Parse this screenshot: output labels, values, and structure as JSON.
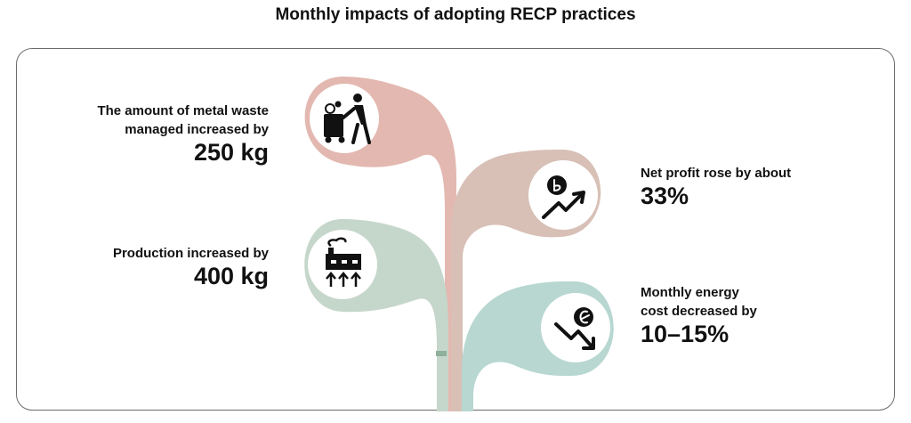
{
  "title": "Monthly impacts of adopting RECP practices",
  "colors": {
    "pink": "#e3b8b0",
    "mauve": "#d8c0b7",
    "sage": "#c5d6ca",
    "teal": "#b7d7d0",
    "panel_border": "#6b6b6b",
    "icon": "#111111"
  },
  "impacts": [
    {
      "label_lines": [
        "The amount of metal waste",
        "managed increased by"
      ],
      "value": "250 kg",
      "icon": "waste-bin-person-icon"
    },
    {
      "label_lines": [
        "Production increased by"
      ],
      "value": "400 kg",
      "icon": "factory-icon"
    },
    {
      "label_lines": [
        "Net profit rose by about"
      ],
      "value": "33%",
      "icon": "profit-up-icon"
    },
    {
      "label_lines": [
        "Monthly energy",
        "cost decreased by"
      ],
      "value": "10–15%",
      "icon": "energy-cost-down-icon"
    }
  ]
}
